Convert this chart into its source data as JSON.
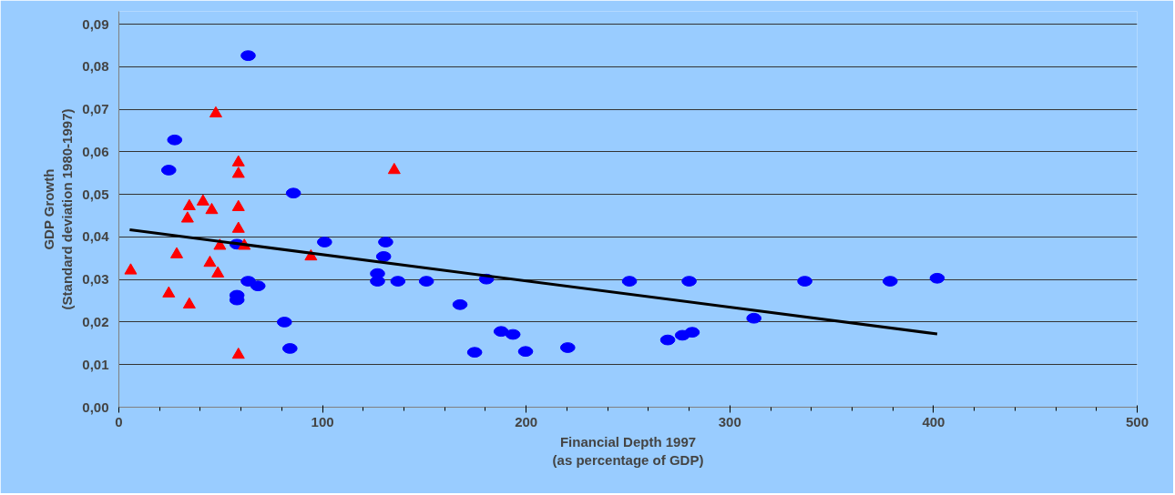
{
  "chart_data": {
    "type": "scatter",
    "xlabel": "Financial Depth 1997\n(as percentage of GDP)",
    "ylabel": "GDP Growth\n(Standard deviation 1980-1997)",
    "xlim": [
      0,
      500
    ],
    "xticks": [
      0,
      100,
      200,
      300,
      400,
      500
    ],
    "ylim": [
      0,
      0.093
    ],
    "yticks": [
      {
        "value": 0,
        "label": "0,00"
      },
      {
        "value": 0.01,
        "label": "0,01"
      },
      {
        "value": 0.02,
        "label": "0,02"
      },
      {
        "value": 0.03,
        "label": "0,03"
      },
      {
        "value": 0.04,
        "label": "0,04"
      },
      {
        "value": 0.05,
        "label": "0,05"
      },
      {
        "value": 0.06,
        "label": "0,06"
      },
      {
        "value": 0.07,
        "label": "0,07"
      },
      {
        "value": 0.08,
        "label": "0,08"
      },
      {
        "value": 0.09,
        "label": "0,09"
      }
    ],
    "grid": "y",
    "series": [
      {
        "marker": "circle",
        "color": "#0000ff",
        "x": [
          63.5,
          27.4,
          24.5,
          85.7,
          101,
          131,
          130,
          58,
          127,
          127,
          137,
          151,
          167.5,
          180.5,
          63.5,
          68.3,
          58,
          58,
          81.3,
          84,
          174.7,
          187.7,
          193.5,
          199.7,
          220.4,
          250.7,
          269.5,
          276.7,
          281.5,
          280,
          311.8,
          336.8,
          378.7,
          401.8
        ],
        "values": [
          0.0826,
          0.0628,
          0.0557,
          0.0503,
          0.0388,
          0.0388,
          0.0354,
          0.0383,
          0.0314,
          0.0296,
          0.0296,
          0.0296,
          0.0241,
          0.0301,
          0.0296,
          0.0285,
          0.0263,
          0.0252,
          0.02,
          0.0138,
          0.0129,
          0.0178,
          0.0171,
          0.0131,
          0.014,
          0.0296,
          0.0158,
          0.0169,
          0.0176,
          0.0296,
          0.0209,
          0.0296,
          0.0296,
          0.0303
        ]
      },
      {
        "marker": "triangle",
        "color": "#ff0000",
        "x": [
          5.8,
          47.6,
          58.7,
          58.7,
          135.2,
          34.6,
          41.3,
          45.6,
          33.7,
          58.7,
          58.7,
          61.6,
          49.6,
          28.4,
          94.3,
          44.7,
          48.6,
          24.5,
          34.6,
          58.7
        ],
        "values": [
          0.0321,
          0.069,
          0.0575,
          0.0548,
          0.0557,
          0.0472,
          0.0483,
          0.0463,
          0.0443,
          0.047,
          0.0419,
          0.0379,
          0.0379,
          0.0359,
          0.0354,
          0.0339,
          0.0314,
          0.0267,
          0.0241,
          0.0123
        ]
      },
      {
        "type": "line",
        "line_style": "solid",
        "color": "#000000",
        "x": [
          5.3,
          401.8
        ],
        "values": [
          0.0417,
          0.0172
        ]
      }
    ]
  }
}
